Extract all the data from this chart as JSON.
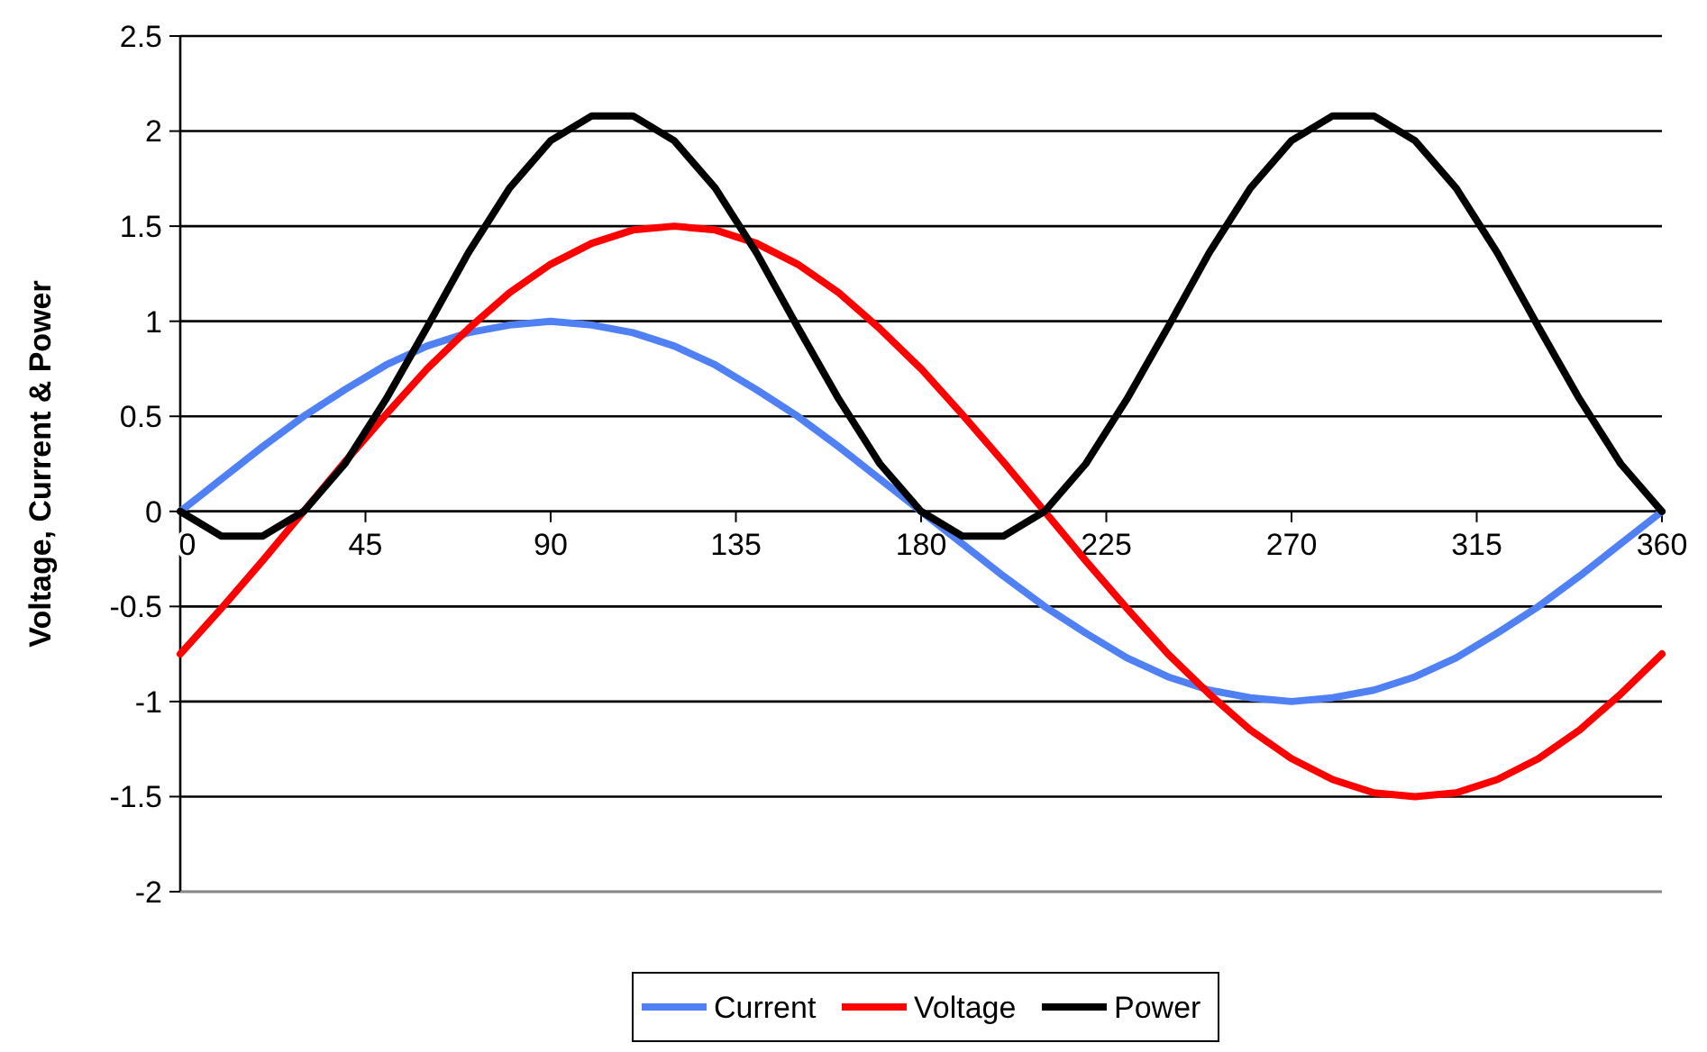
{
  "chart_data": {
    "type": "line",
    "ylabel": "Voltage, Current & Power",
    "x": [
      0,
      10,
      20,
      30,
      40,
      50,
      60,
      70,
      80,
      90,
      100,
      110,
      120,
      130,
      140,
      150,
      160,
      170,
      180,
      190,
      200,
      210,
      220,
      230,
      240,
      250,
      260,
      270,
      280,
      290,
      300,
      310,
      320,
      330,
      340,
      350,
      360
    ],
    "xlim": [
      0,
      360
    ],
    "xticks": [
      0,
      45,
      90,
      135,
      180,
      225,
      270,
      315,
      360
    ],
    "ylim": [
      -2,
      2.5
    ],
    "yticks": [
      -2,
      -1.5,
      -1,
      -0.5,
      0,
      0.5,
      1,
      1.5,
      2,
      2.5
    ],
    "grid": "y",
    "legend": "bottom",
    "marker": "none",
    "line_style": "solid",
    "series": [
      {
        "name": "Current",
        "color": "#4f81f5",
        "values": [
          0,
          0.17,
          0.34,
          0.5,
          0.64,
          0.77,
          0.87,
          0.94,
          0.98,
          1,
          0.98,
          0.94,
          0.87,
          0.77,
          0.64,
          0.5,
          0.34,
          0.17,
          0,
          -0.17,
          -0.34,
          -0.5,
          -0.64,
          -0.77,
          -0.87,
          -0.94,
          -0.98,
          -1,
          -0.98,
          -0.94,
          -0.87,
          -0.77,
          -0.64,
          -0.5,
          -0.34,
          -0.17,
          0
        ]
      },
      {
        "name": "Voltage",
        "color": "#ff0000",
        "values": [
          -0.75,
          -0.51,
          -0.26,
          0,
          0.26,
          0.51,
          0.75,
          0.96,
          1.15,
          1.3,
          1.41,
          1.48,
          1.5,
          1.48,
          1.41,
          1.3,
          1.15,
          0.96,
          0.75,
          0.51,
          0.26,
          0,
          -0.26,
          -0.51,
          -0.75,
          -0.96,
          -1.15,
          -1.3,
          -1.41,
          -1.48,
          -1.5,
          -1.48,
          -1.41,
          -1.3,
          -1.15,
          -0.96,
          -0.75
        ]
      },
      {
        "name": "Power",
        "color": "#000000",
        "values": [
          0,
          -0.13,
          -0.13,
          0,
          0.25,
          0.59,
          0.97,
          1.36,
          1.7,
          1.95,
          2.08,
          2.08,
          1.95,
          1.7,
          1.36,
          0.97,
          0.59,
          0.25,
          0,
          -0.13,
          -0.13,
          0,
          0.25,
          0.59,
          0.97,
          1.36,
          1.7,
          1.95,
          2.08,
          2.08,
          1.95,
          1.7,
          1.36,
          0.97,
          0.59,
          0.25,
          0
        ]
      }
    ]
  }
}
